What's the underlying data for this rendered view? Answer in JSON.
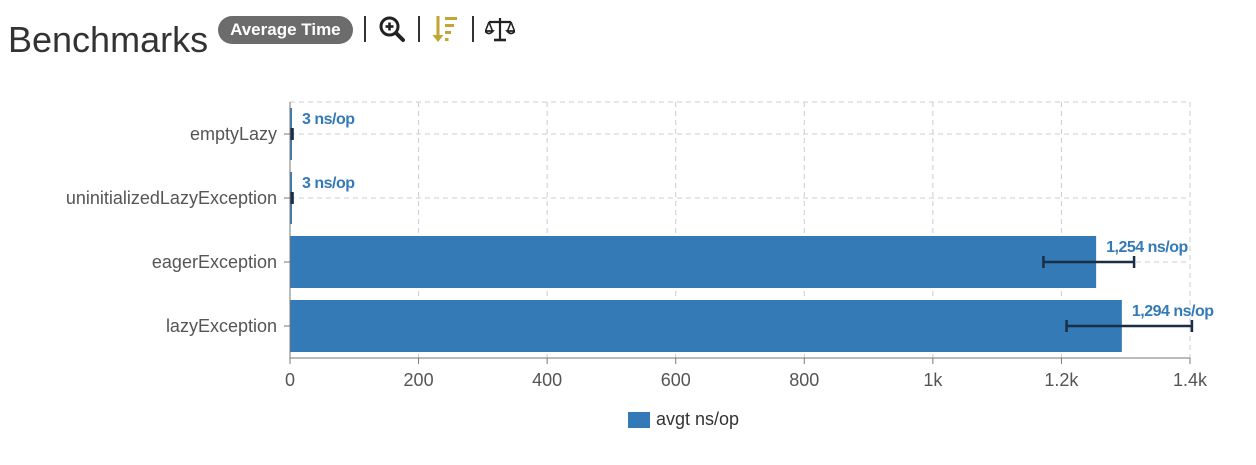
{
  "header": {
    "title": "Benchmarks",
    "mode_badge": "Average Time",
    "icons": [
      "zoom-in-icon",
      "sort-descending-icon",
      "compare-scales-icon"
    ]
  },
  "colors": {
    "bar": "#337ab7",
    "value_label": "#337ab7",
    "error_bar": "#1a2e44",
    "grid": "#cccccc",
    "axis_text": "#555555",
    "sort_icon": "#c2a633"
  },
  "chart_data": {
    "type": "bar",
    "orientation": "horizontal",
    "categories": [
      "emptyLazy",
      "uninitializedLazyException",
      "eagerException",
      "lazyException"
    ],
    "series": [
      {
        "name": "avgt ns/op",
        "values": [
          3,
          3,
          1254,
          1294
        ],
        "error_low": [
          2,
          2,
          1172,
          1208
        ],
        "error_high": [
          4,
          4,
          1313,
          1403
        ],
        "labels": [
          "3 ns/op",
          "3 ns/op",
          "1,254 ns/op",
          "1,294 ns/op"
        ]
      }
    ],
    "xlim": [
      0,
      1400
    ],
    "x_ticks": [
      0,
      200,
      400,
      600,
      800,
      1000,
      1200,
      1400
    ],
    "x_tick_labels": [
      "0",
      "200",
      "400",
      "600",
      "800",
      "1k",
      "1.2k",
      "1.4k"
    ],
    "grid": true,
    "legend": "bottom-center"
  }
}
